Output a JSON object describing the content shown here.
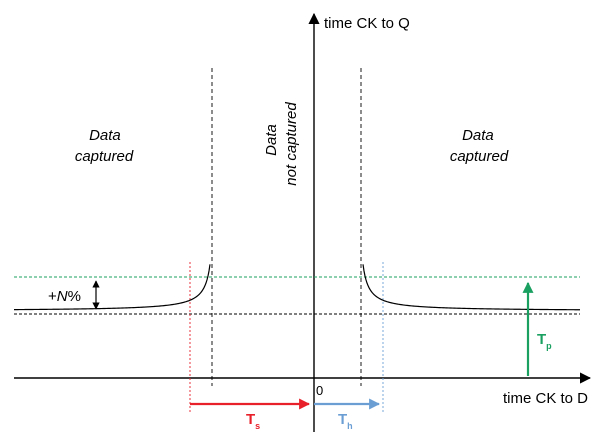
{
  "axes": {
    "y_label": "time CK to Q",
    "x_label": "time CK to D",
    "origin_label": "0"
  },
  "regions": {
    "left": {
      "line1": "Data",
      "line2": "captured"
    },
    "middle": {
      "line1": "Data",
      "line2": "not captured"
    },
    "right": {
      "line1": "Data",
      "line2": "captured"
    }
  },
  "margin": {
    "prefix": "+",
    "n": "N",
    "suffix": "%"
  },
  "setup": {
    "symbol": "T",
    "subscript": "s"
  },
  "hold": {
    "symbol": "T",
    "subscript": "h"
  },
  "propagation": {
    "symbol": "T",
    "subscript": "p"
  },
  "colors": {
    "axis": "#000000",
    "curve": "#000000",
    "setup": "#e8202a",
    "hold": "#6b9fd4",
    "propagation": "#1aa060",
    "margin_line": "#1aa060"
  }
}
